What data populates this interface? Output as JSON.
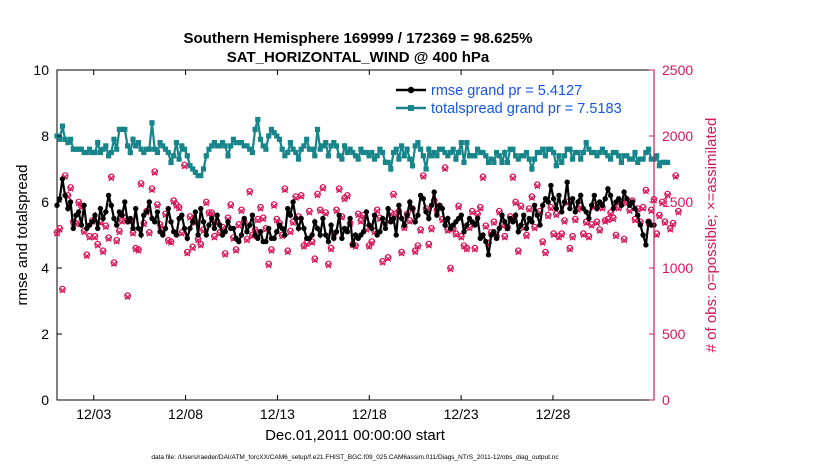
{
  "chart_data": {
    "type": "line",
    "title_line1": "Southern Hemisphere 169999 / 172369 = 98.625%",
    "title_line2": "SAT_HORIZONTAL_WIND @ 400 hPa",
    "xlabel": "Dec.01,2011 00:00:00 start",
    "ylabel_left": "rmse and totalspread",
    "ylabel_right": "# of obs: o=possible; ×=assimilated",
    "footnote": "data file: /Users/raeder/DAI/ATM_forcXX/CAM6_setup/f.e21.FHIST_BGC.f09_025.CAM6assim.011/Diags_NTrS_2011-12/obs_diag_output.nc",
    "xlim": [
      0,
      32.5
    ],
    "ylim_left": [
      0,
      10
    ],
    "ylim_right": [
      0,
      2500
    ],
    "x_ticks": [
      2,
      7,
      12,
      17,
      22,
      27
    ],
    "x_tick_labels": [
      "12/03",
      "12/08",
      "12/13",
      "12/18",
      "12/23",
      "12/28"
    ],
    "left_ticks": [
      0,
      2,
      4,
      6,
      8,
      10
    ],
    "left_tick_labels": [
      "0",
      "2",
      "4",
      "6",
      "8",
      "10"
    ],
    "right_ticks": [
      0,
      500,
      1000,
      1500,
      2000,
      2500
    ],
    "right_tick_labels": [
      "0",
      "500",
      "1000",
      "1500",
      "2000",
      "2500"
    ],
    "series": [
      {
        "name": "rmse grand pr = 5.4127",
        "color": "#000000",
        "axis": "left",
        "values": [
          5.9,
          6.1,
          6.7,
          6.2,
          5.8,
          6.0,
          5.2,
          5.6,
          5.7,
          5.3,
          5.9,
          5.2,
          5.3,
          5.4,
          5.6,
          5.2,
          5.8,
          5.5,
          5.7,
          6.2,
          5.9,
          5.5,
          5.3,
          5.7,
          5.6,
          6.0,
          5.4,
          5.5,
          5.2,
          5.8,
          5.2,
          5.0,
          5.6,
          5.7,
          6.0,
          5.5,
          5.4,
          5.7,
          5.1,
          5.0,
          5.2,
          5.8,
          5.4,
          5.1,
          5.0,
          5.5,
          5.6,
          5.2,
          4.9,
          5.2,
          5.4,
          5.7,
          5.0,
          5.8,
          5.4,
          5.0,
          5.3,
          5.5,
          5.2,
          5.6,
          5.3,
          5.0,
          5.1,
          5.4,
          5.2,
          5.2,
          4.9,
          4.8,
          5.0,
          5.5,
          5.1,
          5.3,
          5.6,
          5.0,
          4.9,
          5.1,
          4.8,
          4.8,
          5.2,
          4.9,
          4.9,
          5.1,
          5.3,
          5.2,
          5.0,
          5.8,
          5.6,
          6.0,
          5.5,
          5.2,
          5.5,
          5.2,
          4.9,
          4.9,
          5.0,
          5.4,
          5.2,
          5.0,
          5.5,
          5.0,
          4.8,
          5.3,
          4.9,
          5.1,
          5.6,
          4.9,
          5.2,
          5.1,
          5.5,
          4.7,
          5.0,
          4.9,
          5.0,
          5.1,
          5.7,
          5.3,
          5.2,
          5.6,
          5.0,
          5.1,
          5.5,
          5.2,
          5.8,
          5.4,
          5.5,
          5.0,
          5.9,
          5.5,
          5.3,
          5.6,
          6.0,
          5.8,
          5.4,
          5.6,
          6.2,
          6.1,
          5.7,
          5.5,
          5.9,
          6.3,
          5.6,
          5.9,
          5.8,
          5.3,
          5.5,
          5.2,
          5.3,
          5.4,
          5.5,
          5.6,
          5.1,
          5.3,
          5.5,
          5.4,
          5.3,
          5.5,
          4.9,
          5.0,
          4.8,
          4.4,
          5.0,
          5.1,
          4.9,
          5.2,
          5.6,
          5.4,
          5.2,
          5.5,
          5.4,
          5.6,
          5.1,
          5.3,
          5.6,
          5.2,
          5.5,
          5.4,
          5.9,
          5.6,
          5.3,
          5.9,
          6.1,
          6.0,
          6.5,
          6.1,
          5.8,
          6.2,
          5.7,
          6.0,
          6.6,
          5.8,
          6.1,
          5.7,
          6.0,
          6.2,
          5.8,
          5.7,
          5.5,
          5.9,
          6.2,
          5.8,
          6.0,
          5.9,
          6.1,
          6.4,
          6.2,
          5.8,
          6.0,
          6.1,
          5.9,
          6.3,
          6.1,
          5.9,
          6.0,
          5.8,
          5.6,
          5.3,
          5.0,
          4.7,
          5.4,
          5.3,
          5.3
        ]
      },
      {
        "name": "totalspread grand pr = 7.5183",
        "color": "#17858a",
        "axis": "left",
        "values": [
          8.0,
          7.9,
          8.3,
          7.9,
          7.8,
          7.9,
          7.6,
          7.6,
          7.6,
          7.6,
          7.5,
          7.5,
          7.6,
          7.5,
          7.5,
          7.8,
          7.5,
          7.6,
          7.7,
          7.4,
          7.5,
          7.9,
          7.6,
          8.2,
          8.2,
          8.2,
          7.7,
          7.5,
          7.9,
          7.7,
          7.8,
          7.6,
          7.5,
          7.6,
          7.6,
          8.4,
          7.6,
          7.5,
          7.8,
          7.7,
          7.6,
          7.5,
          7.2,
          7.4,
          7.8,
          7.3,
          7.7,
          7.6,
          7.4,
          7.1,
          7.0,
          6.9,
          6.8,
          6.8,
          7.0,
          7.4,
          7.6,
          7.7,
          7.8,
          7.7,
          7.7,
          7.8,
          7.7,
          7.4,
          7.7,
          7.9,
          7.8,
          7.8,
          7.8,
          7.7,
          7.7,
          7.6,
          7.5,
          8.2,
          8.5,
          7.9,
          7.7,
          7.6,
          8.0,
          8.2,
          8.1,
          8.0,
          7.9,
          7.6,
          7.4,
          7.5,
          7.8,
          7.6,
          7.5,
          7.3,
          7.6,
          7.7,
          7.9,
          7.6,
          7.6,
          7.4,
          8.2,
          7.6,
          7.7,
          7.8,
          7.4,
          7.7,
          7.8,
          7.7,
          7.4,
          7.3,
          7.7,
          7.5,
          7.6,
          7.5,
          7.4,
          7.3,
          7.6,
          7.5,
          7.5,
          7.4,
          7.5,
          7.3,
          7.4,
          7.6,
          7.5,
          7.2,
          7.2,
          7.0,
          7.5,
          7.6,
          7.3,
          7.7,
          7.4,
          7.6,
          7.3,
          7.1,
          7.7,
          7.8,
          7.6,
          7.4,
          7.0,
          7.6,
          7.4,
          7.5,
          7.4,
          7.6,
          7.6,
          7.5,
          7.4,
          7.5,
          7.6,
          7.3,
          7.5,
          7.8,
          7.2,
          7.8,
          7.4,
          7.4,
          7.4,
          7.6,
          7.5,
          7.5,
          7.4,
          7.2,
          7.3,
          7.2,
          7.5,
          7.4,
          7.2,
          7.5,
          7.2,
          7.6,
          7.6,
          7.4,
          7.3,
          7.4,
          7.4,
          7.5,
          7.3,
          7.0,
          7.3,
          7.5,
          7.5,
          7.6,
          7.4,
          7.6,
          7.6,
          7.5,
          7.1,
          7.4,
          7.2,
          7.4,
          7.6,
          7.6,
          7.3,
          7.5,
          7.5,
          7.3,
          7.5,
          7.8,
          7.6,
          7.5,
          7.5,
          7.4,
          7.5,
          7.6,
          7.5,
          7.4,
          7.3,
          7.5,
          7.5,
          7.4,
          7.2,
          7.4,
          7.4,
          7.3,
          7.3,
          7.5,
          7.2,
          7.3,
          7.3,
          7.5,
          7.6,
          7.3,
          7.3,
          7.4,
          7.1,
          7.2,
          7.2,
          7.2
        ]
      },
      {
        "name": "obs possible",
        "color": "#d6175c",
        "axis": "right",
        "marker": "circle",
        "values": [
          1270,
          1300,
          840,
          1700,
          1550,
          1610,
          1350,
          1340,
          1500,
          1470,
          1280,
          1100,
          1240,
          1360,
          1240,
          1180,
          1350,
          1130,
          1320,
          1230,
          1690,
          1040,
          1210,
          1280,
          1360,
          1380,
          790,
          1360,
          1270,
          1150,
          1140,
          1640,
          1340,
          1430,
          1270,
          1600,
          1730,
          1480,
          1330,
          1290,
          1410,
          1210,
          1200,
          1510,
          1480,
          1460,
          1270,
          1780,
          1120,
          1390,
          1160,
          1350,
          1220,
          1180,
          1290,
          1500,
          1420,
          1420,
          1240,
          1350,
          1270,
          1310,
          1110,
          1380,
          1480,
          1230,
          1140,
          1330,
          1440,
          1350,
          1220,
          1580,
          1250,
          1290,
          1370,
          1460,
          1380,
          1300,
          1030,
          1140,
          1480,
          1370,
          1340,
          1250,
          1600,
          1130,
          1280,
          1350,
          1540,
          1390,
          1550,
          1170,
          1190,
          1430,
          1200,
          1070,
          1560,
          1440,
          1610,
          1420,
          1030,
          1150,
          1260,
          1440,
          1600,
          1390,
          1530,
          1550,
          1340,
          1180,
          1170,
          1410,
          1360,
          1400,
          1300,
          1170,
          1200,
          1280,
          1440,
          1380,
          1050,
          1350,
          1080,
          1420,
          1560,
          1410,
          1430,
          1120,
          1310,
          1410,
          1360,
          1450,
          1130,
          1170,
          1290,
          1700,
          1450,
          1180,
          1300,
          1510,
          1440,
          1470,
          1370,
          1760,
          1290,
          1000,
          1300,
          1260,
          1470,
          1240,
          1170,
          1150,
          1310,
          1430,
          1150,
          1410,
          1460,
          1690,
          1320,
          1190,
          1270,
          1350,
          1240,
          1430,
          1330,
          1240,
          1310,
          1390,
          1690,
          1500,
          1130,
          1470,
          1310,
          1250,
          1450,
          1540,
          1310,
          1630,
          1430,
          1200,
          1120,
          1400,
          1460,
          1260,
          1410,
          1240,
          1260,
          1360,
          1500,
          1150,
          1240,
          1370,
          1450,
          1470,
          1260,
          1350,
          1240,
          1330,
          1470,
          1350,
          1290,
          1460,
          1360,
          1370,
          1420,
          1380,
          1250,
          1460,
          1500,
          1220,
          1500,
          1440,
          1510,
          1370,
          1450,
          1350,
          1460,
          1590,
          1350,
          1440,
          1520,
          1260,
          1400,
          1500,
          1350,
          1560,
          1300,
          1340,
          1700,
          1430
        ]
      },
      {
        "name": "obs assimilated",
        "color": "#d6175c",
        "axis": "right",
        "marker": "x",
        "values": [
          1260,
          1290,
          830,
          1690,
          1540,
          1600,
          1340,
          1330,
          1490,
          1460,
          1270,
          1090,
          1230,
          1350,
          1230,
          1170,
          1340,
          1120,
          1310,
          1220,
          1680,
          1030,
          1200,
          1270,
          1350,
          1370,
          780,
          1350,
          1260,
          1140,
          1130,
          1630,
          1330,
          1420,
          1260,
          1590,
          1720,
          1470,
          1320,
          1280,
          1400,
          1200,
          1190,
          1500,
          1470,
          1450,
          1260,
          1770,
          1110,
          1380,
          1150,
          1340,
          1210,
          1170,
          1280,
          1490,
          1410,
          1410,
          1230,
          1340,
          1260,
          1300,
          1100,
          1370,
          1470,
          1220,
          1130,
          1320,
          1430,
          1340,
          1210,
          1570,
          1240,
          1280,
          1360,
          1450,
          1370,
          1290,
          1020,
          1130,
          1470,
          1360,
          1330,
          1240,
          1590,
          1120,
          1270,
          1340,
          1530,
          1380,
          1540,
          1160,
          1180,
          1420,
          1190,
          1060,
          1550,
          1430,
          1600,
          1410,
          1020,
          1140,
          1250,
          1430,
          1590,
          1380,
          1520,
          1540,
          1330,
          1170,
          1160,
          1400,
          1350,
          1390,
          1290,
          1160,
          1190,
          1270,
          1430,
          1370,
          1040,
          1340,
          1070,
          1410,
          1550,
          1400,
          1420,
          1110,
          1300,
          1400,
          1350,
          1440,
          1120,
          1160,
          1280,
          1690,
          1440,
          1170,
          1290,
          1500,
          1430,
          1460,
          1360,
          1750,
          1280,
          990,
          1290,
          1250,
          1460,
          1230,
          1160,
          1140,
          1300,
          1420,
          1140,
          1400,
          1450,
          1680,
          1310,
          1180,
          1260,
          1340,
          1230,
          1420,
          1320,
          1230,
          1300,
          1380,
          1680,
          1490,
          1120,
          1460,
          1300,
          1240,
          1440,
          1530,
          1300,
          1620,
          1420,
          1190,
          1110,
          1390,
          1450,
          1250,
          1400,
          1230,
          1250,
          1350,
          1490,
          1140,
          1230,
          1360,
          1440,
          1460,
          1250,
          1340,
          1230,
          1320,
          1460,
          1340,
          1280,
          1450,
          1350,
          1360,
          1410,
          1370,
          1240,
          1450,
          1490,
          1210,
          1490,
          1430,
          1500,
          1360,
          1440,
          1340,
          1450,
          1580,
          1340,
          1430,
          1510,
          1250,
          1390,
          1490,
          1340,
          1550,
          1290,
          1330,
          1690,
          1420
        ]
      }
    ],
    "legend_location": "top-right",
    "grid": false
  }
}
